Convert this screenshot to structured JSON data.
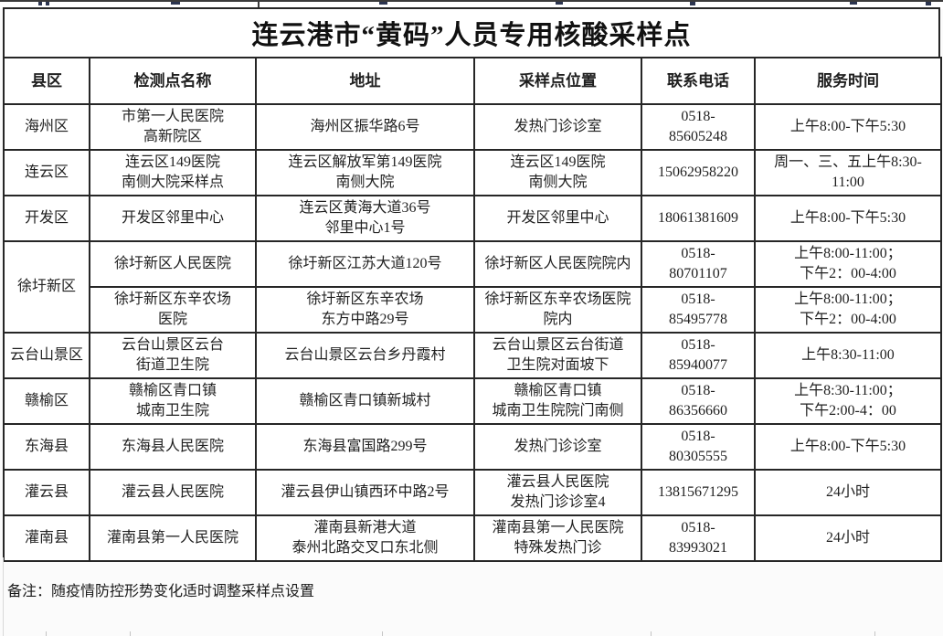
{
  "page": {
    "title": "连云港市“黄码”人员专用核酸采样点",
    "note": "备注：随疫情防控形势变化适时调整采样点设置"
  },
  "colors": {
    "border": "#262626",
    "text": "#1f1f1f",
    "background": "#ffffff"
  },
  "table": {
    "headers": [
      "县区",
      "检测点名称",
      "地址",
      "采样点位置",
      "联系电话",
      "服务时间"
    ],
    "rows": [
      {
        "district": "海州区",
        "district_rowspan": 1,
        "site": "市第一人民医院\n高新院区",
        "address": "海州区振华路6号",
        "location": "发热门诊诊室",
        "phone": "0518-\n85605248",
        "hours": "上午8:00-下午5:30"
      },
      {
        "district": "连云区",
        "district_rowspan": 1,
        "site": "连云区149医院\n南侧大院采样点",
        "address": "连云区解放军第149医院\n南侧大院",
        "location": "连云区149医院\n南侧大院",
        "phone": "15062958220",
        "hours": "周一、三、五上午8:30-\n11:00"
      },
      {
        "district": "开发区",
        "district_rowspan": 1,
        "site": "开发区邻里中心",
        "address": "连云区黄海大道36号\n邻里中心1号",
        "location": "开发区邻里中心",
        "phone": "18061381609",
        "hours": "上午8:00-下午5:30"
      },
      {
        "district": "徐圩新区",
        "district_rowspan": 2,
        "site": "徐圩新区人民医院",
        "address": "徐圩新区江苏大道120号",
        "location": "徐圩新区人民医院院内",
        "phone": "0518-\n80701107",
        "hours": "上午8:00-11:00；\n下午2：00-4:00"
      },
      {
        "district": "徐圩新区",
        "district_rowspan": 0,
        "site": "徐圩新区东辛农场\n医院",
        "address": "徐圩新区东辛农场\n东方中路29号",
        "location": "徐圩新区东辛农场医院\n院内",
        "phone": "0518-\n85495778",
        "hours": "上午8:00-11:00；\n下午2：00-4:00"
      },
      {
        "district": "云台山景区",
        "district_rowspan": 1,
        "site": "云台山景区云台\n街道卫生院",
        "address": "云台山景区云台乡丹霞村",
        "location": "云台山景区云台街道\n卫生院对面坡下",
        "phone": "0518-\n85940077",
        "hours": "上午8:30-11:00"
      },
      {
        "district": "赣榆区",
        "district_rowspan": 1,
        "site": "赣榆区青口镇\n城南卫生院",
        "address": "赣榆区青口镇新城村",
        "location": "赣榆区青口镇\n城南卫生院院门南侧",
        "phone": "0518-\n86356660",
        "hours": "上午8:30-11:00；\n下午2:00-4：00"
      },
      {
        "district": "东海县",
        "district_rowspan": 1,
        "site": "东海县人民医院",
        "address": "东海县富国路299号",
        "location": "发热门诊诊室",
        "phone": "0518-\n80305555",
        "hours": "上午8:00-下午5:30"
      },
      {
        "district": "灌云县",
        "district_rowspan": 1,
        "site": "灌云县人民医院",
        "address": "灌云县伊山镇西环中路2号",
        "location": "灌云县人民医院\n发热门诊诊室4",
        "phone": "13815671295",
        "hours": "24小时"
      },
      {
        "district": "灌南县",
        "district_rowspan": 1,
        "site": "灌南县第一人民医院",
        "address": "灌南县新港大道\n泰州北路交叉口东北侧",
        "location": "灌南县第一人民医院\n特殊发热门诊",
        "phone": "0518-\n83993021",
        "hours": "24小时"
      }
    ]
  }
}
